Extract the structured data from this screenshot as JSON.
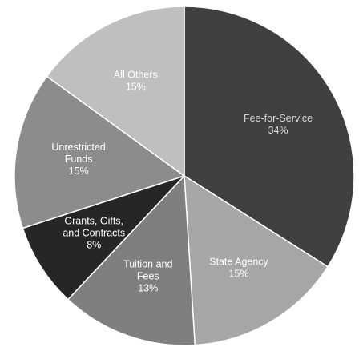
{
  "chart_data": {
    "type": "pie",
    "title": "",
    "start_angle_deg": 0,
    "direction": "clockwise",
    "slices": [
      {
        "label": "Fee-for-Service",
        "value": 34,
        "percent_label": "34%",
        "color": "#404040",
        "text_color": "#d9d9d9"
      },
      {
        "label": "State Agency",
        "value": 15,
        "percent_label": "15%",
        "color": "#a6a6a6",
        "text_color": "#ffffff"
      },
      {
        "label": "Tuition and Fees",
        "value": 13,
        "percent_label": "13%",
        "color": "#7f7f7f",
        "text_color": "#ffffff"
      },
      {
        "label": "Grants, Gifts, and Contracts",
        "value": 8,
        "percent_label": "8%",
        "color": "#262626",
        "text_color": "#ffffff"
      },
      {
        "label": "Unrestricted Funds",
        "value": 15,
        "percent_label": "15%",
        "color": "#8c8c8c",
        "text_color": "#ffffff"
      },
      {
        "label": "All Others",
        "value": 15,
        "percent_label": "15%",
        "color": "#bfbfbf",
        "text_color": "#ffffff"
      }
    ]
  }
}
